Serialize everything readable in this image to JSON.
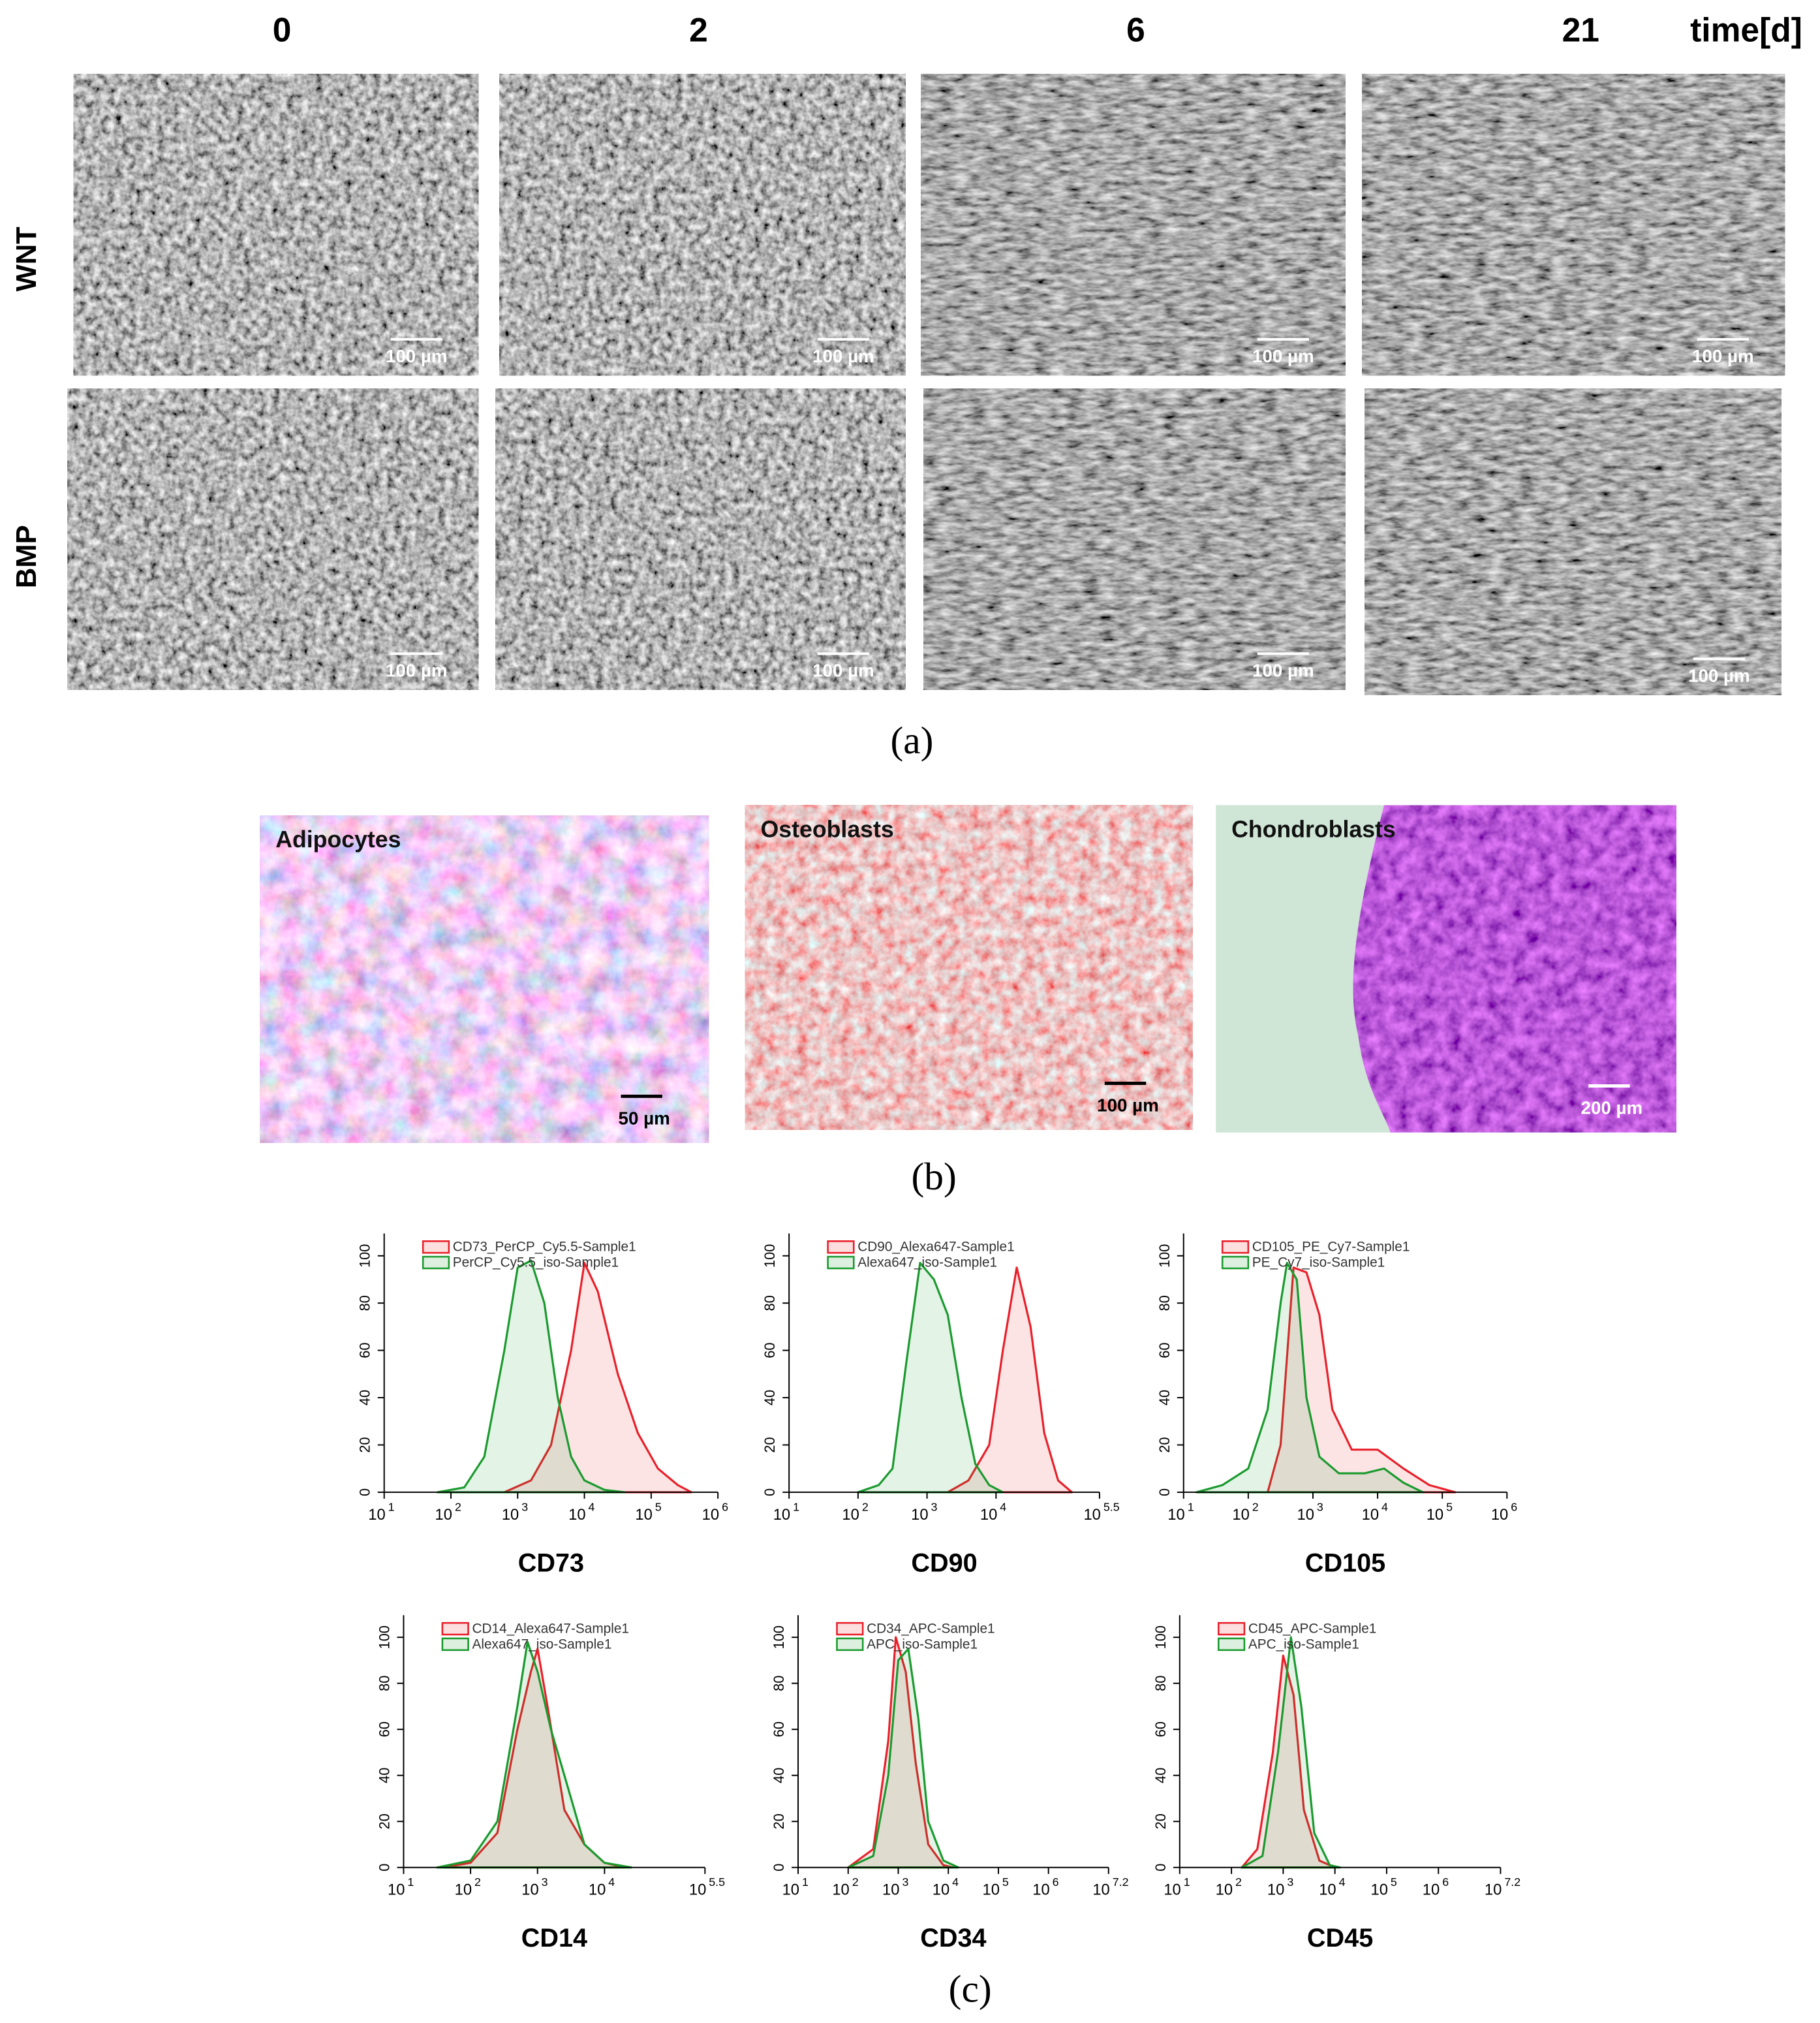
{
  "panel_a": {
    "time_labels": [
      "0",
      "2",
      "6",
      "21"
    ],
    "time_unit": "time[d]",
    "rows": [
      "WNT",
      "BMP"
    ],
    "scale_bars": [
      [
        "100 µm",
        "100 µm",
        "100 µm",
        "100 µm"
      ],
      [
        "100 µm",
        "100 µm",
        "100 µm",
        "100 µm"
      ]
    ],
    "caption": "(a)"
  },
  "panel_b": {
    "images": [
      {
        "label": "Adipocytes",
        "scale": "50 µm"
      },
      {
        "label": "Osteoblasts",
        "scale": "100 µm"
      },
      {
        "label": "Chondroblasts",
        "scale": "200 µm"
      }
    ],
    "caption": "(b)"
  },
  "panel_c": {
    "caption": "(c)",
    "tick_base": "10",
    "charts": [
      {
        "type": "area",
        "xlabel": "CD73",
        "xlim": [
          1,
          6
        ],
        "xticks": [
          1,
          2,
          3,
          4,
          5,
          6
        ],
        "ylim": [
          0,
          104
        ],
        "yticks": [
          0,
          20,
          40,
          60,
          80,
          100
        ],
        "series": [
          {
            "name": "CD73_PerCP_Cy5.5-Sample1",
            "color": "#e8202a",
            "x": [
              2.8,
              3.2,
              3.5,
              3.8,
              4.0,
              4.2,
              4.5,
              4.8,
              5.1,
              5.4,
              5.6
            ],
            "values": [
              0,
              5,
              20,
              60,
              97,
              85,
              50,
              25,
              10,
              3,
              0
            ]
          },
          {
            "name": "PerCP_Cy5.5_iso-Sample1",
            "color": "#1a9a2e",
            "x": [
              1.8,
              2.2,
              2.5,
              2.8,
              3.0,
              3.2,
              3.4,
              3.6,
              3.8,
              4.0,
              4.3,
              4.6
            ],
            "values": [
              0,
              2,
              15,
              60,
              95,
              98,
              80,
              40,
              15,
              5,
              1,
              0
            ]
          }
        ]
      },
      {
        "type": "area",
        "xlabel": "CD90",
        "xlim": [
          1,
          5.5
        ],
        "xticks": [
          1,
          2,
          3,
          4,
          5.5
        ],
        "ylim": [
          0,
          104
        ],
        "yticks": [
          0,
          20,
          40,
          60,
          80,
          100
        ],
        "series": [
          {
            "name": "CD90_Alexa647-Sample1",
            "color": "#e8202a",
            "x": [
              3.3,
              3.6,
              3.9,
              4.1,
              4.3,
              4.5,
              4.7,
              4.9,
              5.1
            ],
            "values": [
              0,
              5,
              20,
              60,
              95,
              70,
              25,
              5,
              0
            ]
          },
          {
            "name": "Alexa647_iso-Sample1",
            "color": "#1a9a2e",
            "x": [
              2.0,
              2.3,
              2.5,
              2.7,
              2.9,
              3.1,
              3.3,
              3.5,
              3.7,
              3.9,
              4.1
            ],
            "values": [
              0,
              3,
              10,
              55,
              97,
              90,
              75,
              40,
              12,
              3,
              0
            ]
          }
        ]
      },
      {
        "type": "area",
        "xlabel": "CD105",
        "xlim": [
          1,
          6
        ],
        "xticks": [
          1,
          2,
          3,
          4,
          5,
          6
        ],
        "ylim": [
          0,
          104
        ],
        "yticks": [
          0,
          20,
          40,
          60,
          80,
          100
        ],
        "series": [
          {
            "name": "CD105_PE_Cy7-Sample1",
            "color": "#e8202a",
            "x": [
              2.3,
              2.5,
              2.7,
              2.9,
              3.1,
              3.3,
              3.6,
              4.0,
              4.4,
              4.8,
              5.2
            ],
            "values": [
              0,
              20,
              95,
              93,
              75,
              35,
              18,
              18,
              10,
              3,
              0
            ]
          },
          {
            "name": "PE_Cy7_iso-Sample1",
            "color": "#1a9a2e",
            "x": [
              1.2,
              1.6,
              2.0,
              2.3,
              2.5,
              2.6,
              2.75,
              2.9,
              3.1,
              3.4,
              3.8,
              4.1,
              4.4,
              4.7
            ],
            "values": [
              0,
              3,
              10,
              35,
              80,
              97,
              90,
              40,
              15,
              8,
              8,
              10,
              4,
              0
            ]
          }
        ]
      },
      {
        "type": "area",
        "xlabel": "CD14",
        "xlim": [
          1,
          5.5
        ],
        "xticks": [
          1,
          2,
          3,
          4,
          5.5
        ],
        "ylim": [
          0,
          104
        ],
        "yticks": [
          0,
          20,
          40,
          60,
          80,
          100
        ],
        "series": [
          {
            "name": "CD14_Alexa647-Sample1",
            "color": "#e8202a",
            "x": [
              1.6,
              2.0,
              2.4,
              2.7,
              2.9,
              3.0,
              3.15,
              3.4,
              3.7,
              4.0,
              4.3
            ],
            "values": [
              0,
              2,
              15,
              60,
              85,
              95,
              70,
              25,
              10,
              2,
              0
            ]
          },
          {
            "name": "Alexa647_iso-Sample1",
            "color": "#1a9a2e",
            "x": [
              1.5,
              2.0,
              2.4,
              2.7,
              2.85,
              3.0,
              3.2,
              3.4,
              3.7,
              4.0,
              4.4
            ],
            "values": [
              0,
              3,
              20,
              70,
              98,
              85,
              60,
              40,
              10,
              2,
              0
            ]
          }
        ]
      },
      {
        "type": "area",
        "xlabel": "CD34",
        "xlim": [
          1,
          7.2
        ],
        "xticks": [
          1,
          2,
          3,
          4,
          5,
          6,
          7.2
        ],
        "ylim": [
          0,
          104
        ],
        "yticks": [
          0,
          20,
          40,
          60,
          80,
          100
        ],
        "series": [
          {
            "name": "CD34_APC-Sample1",
            "color": "#e8202a",
            "x": [
              2.0,
              2.5,
              2.8,
              2.95,
              3.15,
              3.35,
              3.6,
              3.9,
              4.1
            ],
            "values": [
              0,
              8,
              55,
              100,
              85,
              45,
              10,
              1,
              0
            ]
          },
          {
            "name": "APC_iso-Sample1",
            "color": "#1a9a2e",
            "x": [
              2.0,
              2.5,
              2.8,
              3.0,
              3.2,
              3.4,
              3.6,
              3.9,
              4.2
            ],
            "values": [
              0,
              5,
              40,
              90,
              95,
              65,
              20,
              3,
              0
            ]
          }
        ]
      },
      {
        "type": "area",
        "xlabel": "CD45",
        "xlim": [
          1,
          7.2
        ],
        "xticks": [
          1,
          2,
          3,
          4,
          5,
          6,
          7.2
        ],
        "ylim": [
          0,
          104
        ],
        "yticks": [
          0,
          20,
          40,
          60,
          80,
          100
        ],
        "series": [
          {
            "name": "CD45_APC-Sample1",
            "color": "#e8202a",
            "x": [
              2.2,
              2.5,
              2.8,
              3.0,
              3.2,
              3.4,
              3.7,
              4.0
            ],
            "values": [
              0,
              8,
              50,
              92,
              75,
              25,
              3,
              0
            ]
          },
          {
            "name": "APC_iso-Sample1",
            "color": "#1a9a2e",
            "x": [
              2.2,
              2.6,
              2.9,
              3.15,
              3.35,
              3.6,
              3.9,
              4.1
            ],
            "values": [
              0,
              5,
              50,
              100,
              70,
              15,
              1,
              0
            ]
          }
        ]
      }
    ]
  }
}
